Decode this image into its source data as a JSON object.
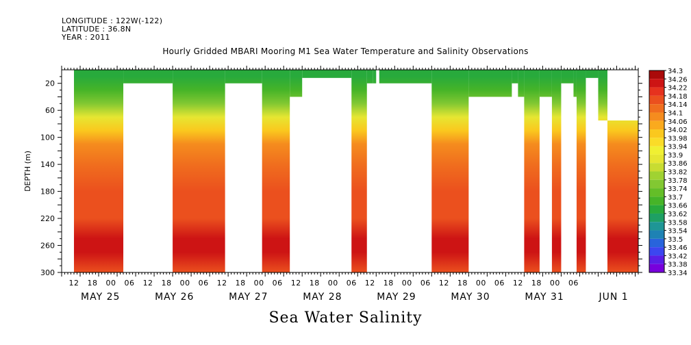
{
  "header": {
    "longitude": "LONGITUDE : 122W(-122)",
    "latitude": "LATITUDE : 36.8N",
    "year": "YEAR : 2011"
  },
  "chart_data": {
    "type": "heatmap",
    "title": "Hourly Gridded MBARI Mooring M1 Sea Water Temperature and Salinity Observations",
    "ylabel": "DEPTH (m)",
    "caption": "Sea Water Salinity",
    "y_range": [
      300,
      0
    ],
    "y_ticks": [
      20,
      60,
      100,
      140,
      180,
      220,
      260,
      300
    ],
    "x_range_hours": [
      0,
      187
    ],
    "x_hour_ticks": [
      "12",
      "18",
      "00",
      "06",
      "12",
      "18",
      "00",
      "06",
      "12",
      "18",
      "00",
      "06",
      "12",
      "18",
      "00",
      "06",
      "12",
      "18",
      "00",
      "06",
      "12",
      "18",
      "00",
      "06",
      "12",
      "18",
      "00",
      "06"
    ],
    "x_date_labels": [
      "MAY 25",
      "MAY 26",
      "MAY 27",
      "MAY 28",
      "MAY 29",
      "MAY 30",
      "MAY 31",
      "JUN  1"
    ],
    "colorbar": {
      "levels": [
        33.34,
        33.38,
        33.42,
        33.46,
        33.5,
        33.54,
        33.58,
        33.62,
        33.66,
        33.7,
        33.74,
        33.78,
        33.82,
        33.86,
        33.9,
        33.94,
        33.98,
        34.02,
        34.06,
        34.1,
        34.14,
        34.18,
        34.22,
        34.26,
        34.3
      ],
      "labels": [
        "34.3",
        "34.26",
        "34.22",
        "34.18",
        "34.14",
        "34.1",
        "34.06",
        "34.02",
        "33.98",
        "33.94",
        "33.9",
        "33.86",
        "33.82",
        "33.78",
        "33.74",
        "33.7",
        "33.66",
        "33.62",
        "33.58",
        "33.54",
        "33.5",
        "33.46",
        "33.42",
        "33.38",
        "33.34"
      ]
    },
    "profile": [
      {
        "depth": 10,
        "value": 33.66
      },
      {
        "depth": 30,
        "value": 33.72
      },
      {
        "depth": 50,
        "value": 33.8
      },
      {
        "depth": 70,
        "value": 33.9
      },
      {
        "depth": 90,
        "value": 34.0
      },
      {
        "depth": 110,
        "value": 34.08
      },
      {
        "depth": 140,
        "value": 34.14
      },
      {
        "depth": 180,
        "value": 34.16
      },
      {
        "depth": 220,
        "value": 34.18
      },
      {
        "depth": 250,
        "value": 34.26
      },
      {
        "depth": 270,
        "value": 34.24
      },
      {
        "depth": 300,
        "value": 34.18
      }
    ],
    "data_segments": [
      {
        "t0": 4,
        "t1": 20,
        "d_top": 0,
        "d_bot": 300
      },
      {
        "t0": 20,
        "t1": 36,
        "d_top": 0,
        "d_bot": 20
      },
      {
        "t0": 36,
        "t1": 53,
        "d_top": 0,
        "d_bot": 300
      },
      {
        "t0": 53,
        "t1": 65,
        "d_top": 0,
        "d_bot": 20
      },
      {
        "t0": 65,
        "t1": 74,
        "d_top": 0,
        "d_bot": 300
      },
      {
        "t0": 74,
        "t1": 78,
        "d_top": 0,
        "d_bot": 40
      },
      {
        "t0": 78,
        "t1": 94,
        "d_top": 0,
        "d_bot": 12
      },
      {
        "t0": 94,
        "t1": 99,
        "d_top": 0,
        "d_bot": 300
      },
      {
        "t0": 99,
        "t1": 101,
        "d_top": 0,
        "d_bot": 20
      },
      {
        "t0": 101,
        "t1": 102,
        "d_top": 0,
        "d_bot": 20
      },
      {
        "t0": 103,
        "t1": 120,
        "d_top": 0,
        "d_bot": 20
      },
      {
        "t0": 120,
        "t1": 132,
        "d_top": 0,
        "d_bot": 300
      },
      {
        "t0": 132,
        "t1": 146,
        "d_top": 0,
        "d_bot": 40
      },
      {
        "t0": 146,
        "t1": 148,
        "d_top": 0,
        "d_bot": 20
      },
      {
        "t0": 148,
        "t1": 150,
        "d_top": 0,
        "d_bot": 40
      },
      {
        "t0": 150,
        "t1": 155,
        "d_top": 0,
        "d_bot": 300
      },
      {
        "t0": 155,
        "t1": 159,
        "d_top": 0,
        "d_bot": 40
      },
      {
        "t0": 159,
        "t1": 162,
        "d_top": 0,
        "d_bot": 300
      },
      {
        "t0": 162,
        "t1": 166,
        "d_top": 0,
        "d_bot": 20
      },
      {
        "t0": 166,
        "t1": 167,
        "d_top": 0,
        "d_bot": 40
      },
      {
        "t0": 167,
        "t1": 170,
        "d_top": 0,
        "d_bot": 300
      },
      {
        "t0": 170,
        "t1": 174,
        "d_top": 0,
        "d_bot": 12
      },
      {
        "t0": 174,
        "t1": 177,
        "d_top": 0,
        "d_bot": 75
      }
    ],
    "data_segments_bottom": [
      {
        "t0": 177,
        "t1": 187,
        "d_top": 75,
        "d_bot": 300
      }
    ]
  }
}
